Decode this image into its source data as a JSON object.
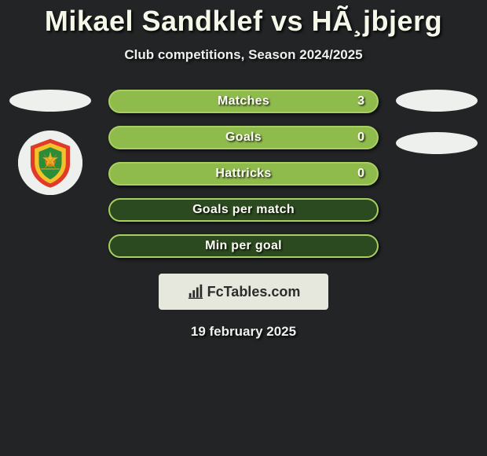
{
  "header": {
    "title": "Mikael Sandklef vs HÃ¸jbjerg",
    "subtitle": "Club competitions, Season 2024/2025"
  },
  "colors": {
    "background": "#222426",
    "pill_fill": "#8fbb4c",
    "pill_empty": "#2b4a1f",
    "pill_border": "#a9cf62",
    "pill_text": "#fdfef6",
    "placeholder": "#eef0ed",
    "brand_bg": "#e6e8dd",
    "brand_text": "#2c2c2c"
  },
  "stats": {
    "rows": [
      {
        "label": "Matches",
        "value": "3",
        "has_value": true
      },
      {
        "label": "Goals",
        "value": "0",
        "has_value": true
      },
      {
        "label": "Hattricks",
        "value": "0",
        "has_value": true
      },
      {
        "label": "Goals per match",
        "value": null,
        "has_value": false
      },
      {
        "label": "Min per goal",
        "value": null,
        "has_value": false
      }
    ]
  },
  "badge": {
    "outer": "#e03a2a",
    "mid": "#f3c22b",
    "inner": "#2c8c3a",
    "detail": "#d07a16"
  },
  "brand": {
    "text": "FcTables.com"
  },
  "footer": {
    "date": "19 february 2025"
  }
}
